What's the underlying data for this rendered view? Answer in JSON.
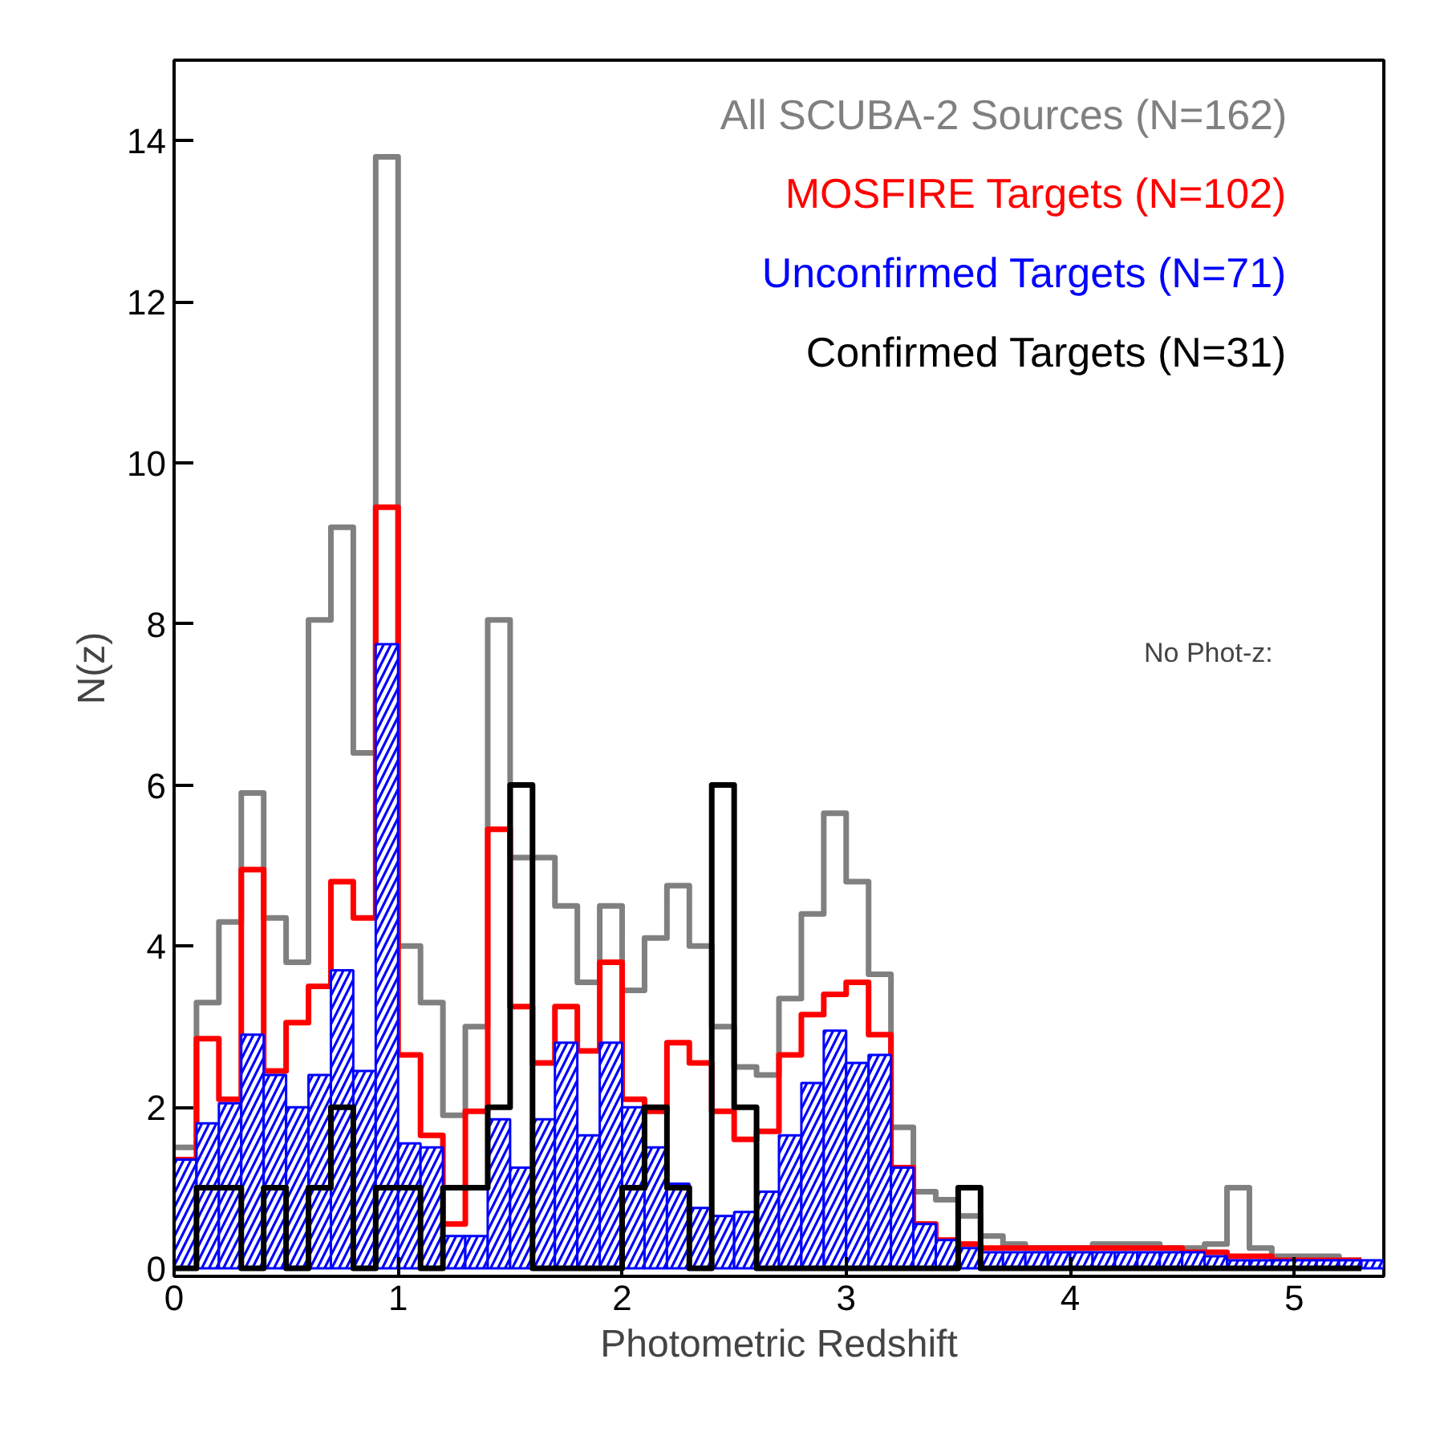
{
  "chart_data": {
    "type": "histogram",
    "xlabel": "Photometric Redshift",
    "ylabel": "N(z)",
    "bins": [
      0,
      0.1,
      0.2,
      0.3,
      0.4,
      0.5,
      0.6,
      0.7,
      0.8,
      0.9,
      1.0,
      1.1,
      1.2,
      1.3,
      1.4,
      1.5,
      1.6,
      1.7,
      1.8,
      1.9,
      2.0,
      2.1,
      2.2,
      2.3,
      2.4,
      2.5,
      2.6,
      2.7,
      2.8,
      2.9,
      3.0,
      3.1,
      3.2,
      3.3,
      3.4,
      3.5,
      3.6,
      3.7,
      3.8,
      3.9,
      4.0,
      4.1,
      4.2,
      4.3,
      4.4,
      4.5,
      4.6,
      4.7,
      4.8,
      4.9,
      5.0,
      5.1,
      5.2,
      5.3,
      5.4
    ],
    "series": [
      {
        "name": "All SCUBA-2 Sources (N=162)",
        "type": "step",
        "color": "#808080",
        "x": [
          0,
          0.1,
          0.2,
          0.3,
          0.4,
          0.5,
          0.6,
          0.7,
          0.8,
          0.9,
          1.0,
          1.1,
          1.2,
          1.3,
          1.4,
          1.5,
          1.6,
          1.7,
          1.8,
          1.9,
          2.0,
          2.1,
          2.2,
          2.3,
          2.4,
          2.5,
          2.6,
          2.7,
          2.8,
          2.9,
          3.0,
          3.1,
          3.2,
          3.3,
          3.4,
          3.5,
          3.6,
          3.7,
          3.8,
          3.9,
          4.0,
          4.1,
          4.2,
          4.3,
          4.4,
          4.5,
          4.6,
          4.7,
          4.8,
          4.9,
          5.0,
          5.1,
          5.2,
          5.3
        ],
        "values": [
          1.5,
          3.3,
          4.3,
          5.9,
          4.35,
          3.8,
          8.05,
          9.2,
          6.4,
          13.8,
          4.0,
          3.3,
          1.9,
          3.0,
          8.05,
          5.1,
          5.1,
          4.5,
          3.55,
          4.5,
          3.45,
          4.1,
          4.75,
          4.0,
          3.0,
          2.5,
          2.4,
          3.35,
          4.4,
          5.65,
          4.8,
          3.65,
          1.75,
          0.95,
          0.85,
          0.65,
          0.4,
          0.3,
          0.25,
          0.25,
          0.25,
          0.3,
          0.3,
          0.3,
          0.25,
          0.25,
          0.3,
          1.0,
          0.25,
          0.15,
          0.15,
          0.15,
          0.1,
          0.1
        ]
      },
      {
        "name": "MOSFIRE Targets (N=102)",
        "type": "step",
        "color": "#ff0000",
        "x": [
          0,
          0.1,
          0.2,
          0.3,
          0.4,
          0.5,
          0.6,
          0.7,
          0.8,
          0.9,
          1.0,
          1.1,
          1.2,
          1.3,
          1.4,
          1.5,
          1.6,
          1.7,
          1.8,
          1.9,
          2.0,
          2.1,
          2.2,
          2.3,
          2.4,
          2.5,
          2.6,
          2.7,
          2.8,
          2.9,
          3.0,
          3.1,
          3.2,
          3.3,
          3.4,
          3.5,
          3.6,
          3.7,
          3.8,
          3.9,
          4.0,
          4.1,
          4.2,
          4.3,
          4.4,
          4.5,
          4.6,
          4.7,
          4.8,
          4.9,
          5.0,
          5.1,
          5.2,
          5.3
        ],
        "values": [
          1.35,
          2.85,
          2.1,
          4.95,
          2.45,
          3.05,
          3.5,
          4.8,
          4.35,
          9.45,
          2.65,
          1.65,
          0.55,
          1.95,
          5.45,
          3.25,
          2.55,
          3.25,
          2.7,
          3.8,
          2.1,
          1.95,
          2.8,
          2.55,
          1.95,
          1.6,
          1.7,
          2.65,
          3.15,
          3.4,
          3.55,
          2.9,
          1.25,
          0.55,
          0.35,
          0.3,
          0.25,
          0.25,
          0.25,
          0.25,
          0.25,
          0.25,
          0.25,
          0.25,
          0.25,
          0.2,
          0.2,
          0.15,
          0.15,
          0.1,
          0.1,
          0.1,
          0.1,
          0.1
        ]
      },
      {
        "name": "Unconfirmed Targets (N=71)",
        "color": "#0000ff",
        "values": [
          1.35,
          1.8,
          2.05,
          2.9,
          2.4,
          2.0,
          2.4,
          3.7,
          2.45,
          7.75,
          1.55,
          1.5,
          0.4,
          0.4,
          1.85,
          1.25,
          1.85,
          2.8,
          1.65,
          2.8,
          2.0,
          1.5,
          1.05,
          0.75,
          0.65,
          0.7,
          0.95,
          1.65,
          2.3,
          2.95,
          2.55,
          2.65,
          1.25,
          0.55,
          0.35,
          0.25,
          0.2,
          0.2,
          0.2,
          0.2,
          0.2,
          0.2,
          0.2,
          0.2,
          0.2,
          0.2,
          0.15,
          0.1,
          0.1,
          0.1,
          0.1,
          0.1,
          0.1,
          0.1
        ]
      },
      {
        "name": "Confirmed Targets (N=31)",
        "type": "step",
        "color": "#000000",
        "x": [
          0,
          0.1,
          0.2,
          0.3,
          0.4,
          0.5,
          0.6,
          0.7,
          0.8,
          0.9,
          1.0,
          1.1,
          1.2,
          1.3,
          1.4,
          1.5,
          1.6,
          1.7,
          1.8,
          1.9,
          2.0,
          2.1,
          2.2,
          2.3,
          2.4,
          2.5,
          2.6,
          2.7,
          2.8,
          2.9,
          3.0,
          3.1,
          3.2,
          3.3,
          3.4,
          3.5,
          3.6,
          3.7,
          3.8,
          3.9,
          4.0,
          4.1,
          4.2,
          4.3,
          4.4,
          4.5,
          4.6,
          4.7,
          4.8,
          4.9,
          5.0,
          5.1,
          5.2,
          5.3
        ],
        "values": [
          0,
          1,
          1,
          0,
          1,
          0,
          1,
          2,
          0,
          1,
          1,
          0,
          1,
          1,
          2,
          6,
          0,
          0,
          0,
          0,
          1,
          2,
          1,
          0,
          6,
          2,
          0,
          0,
          0,
          0,
          0,
          0,
          0,
          0,
          0,
          1,
          0,
          0,
          0,
          0,
          0,
          0,
          0,
          0,
          0,
          0,
          0,
          0,
          0,
          0,
          0,
          0,
          0,
          0
        ]
      }
    ],
    "xlim": [
      0,
      5.4
    ],
    "ylim": [
      -0.1,
      15
    ],
    "xticks": [
      0,
      1,
      2,
      3,
      4,
      5
    ],
    "yticks": [
      0,
      2,
      4,
      6,
      8,
      10,
      12,
      14
    ],
    "annotations": [
      "No Phot-z:"
    ],
    "legend": "top right",
    "grid": false
  }
}
